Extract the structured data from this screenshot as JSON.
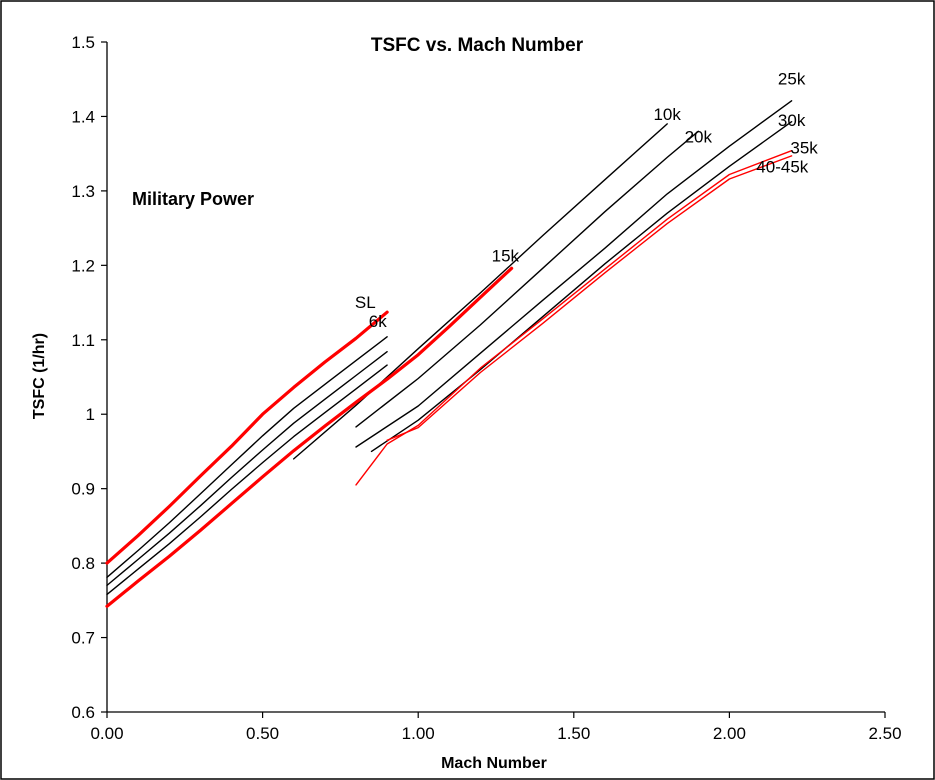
{
  "chart_data": {
    "type": "line",
    "title": "TSFC vs. Mach Number",
    "xlabel": "Mach Number",
    "ylabel": "TSFC (1/hr)",
    "annotation": "Military Power",
    "xlim": [
      0,
      2.5
    ],
    "ylim": [
      0.6,
      1.5
    ],
    "x_ticks": [
      "0.00",
      "0.50",
      "1.00",
      "1.50",
      "2.00",
      "2.50"
    ],
    "y_ticks": [
      "0.6",
      "0.7",
      "0.8",
      "0.9",
      "1",
      "1.1",
      "1.2",
      "1.3",
      "1.4",
      "1.5"
    ],
    "grid": false,
    "series": [
      {
        "name": "SL",
        "color": "#ff0000",
        "bold": true,
        "x": [
          0.0,
          0.1,
          0.2,
          0.3,
          0.4,
          0.5,
          0.6,
          0.7,
          0.8,
          0.9
        ],
        "y": [
          0.8,
          0.837,
          0.876,
          0.917,
          0.957,
          1.0,
          1.036,
          1.07,
          1.102,
          1.137
        ]
      },
      {
        "name": "6k",
        "color": "#000000",
        "bold": false,
        "x": [
          0.0,
          0.1,
          0.2,
          0.3,
          0.4,
          0.5,
          0.6,
          0.7,
          0.8,
          0.9
        ],
        "y": [
          0.781,
          0.817,
          0.854,
          0.893,
          0.932,
          0.971,
          1.008,
          1.04,
          1.072,
          1.104
        ]
      },
      {
        "name": "",
        "color": "#000000",
        "bold": false,
        "x": [
          0.0,
          0.1,
          0.2,
          0.3,
          0.4,
          0.5,
          0.6,
          0.7,
          0.8,
          0.9
        ],
        "y": [
          0.77,
          0.805,
          0.84,
          0.877,
          0.915,
          0.952,
          0.988,
          1.02,
          1.052,
          1.084
        ]
      },
      {
        "name": "",
        "color": "#000000",
        "bold": false,
        "x": [
          0.0,
          0.1,
          0.2,
          0.3,
          0.4,
          0.5,
          0.6,
          0.7,
          0.8,
          0.9
        ],
        "y": [
          0.758,
          0.792,
          0.826,
          0.862,
          0.899,
          0.935,
          0.97,
          1.002,
          1.034,
          1.066
        ]
      },
      {
        "name": "10k",
        "color": "#000000",
        "bold": false,
        "x": [
          0.6,
          0.8,
          1.0,
          1.2,
          1.4,
          1.6,
          1.8
        ],
        "y": [
          0.94,
          1.012,
          1.088,
          1.163,
          1.24,
          1.315,
          1.39
        ]
      },
      {
        "name": "15k",
        "color": "#ff0000",
        "bold": true,
        "x": [
          0.0,
          0.1,
          0.2,
          0.3,
          0.4,
          0.5,
          0.6,
          0.7,
          0.8,
          0.9,
          1.0,
          1.1,
          1.2,
          1.3
        ],
        "y": [
          0.742,
          0.776,
          0.809,
          0.844,
          0.88,
          0.916,
          0.951,
          0.984,
          1.016,
          1.047,
          1.08,
          1.118,
          1.157,
          1.196
        ]
      },
      {
        "name": "20k",
        "color": "#000000",
        "bold": false,
        "x": [
          0.8,
          1.0,
          1.2,
          1.4,
          1.6,
          1.8,
          1.9
        ],
        "y": [
          0.983,
          1.048,
          1.12,
          1.196,
          1.272,
          1.345,
          1.38
        ]
      },
      {
        "name": "25k",
        "color": "#000000",
        "bold": false,
        "x": [
          0.8,
          1.0,
          1.2,
          1.4,
          1.6,
          1.8,
          2.0,
          2.2
        ],
        "y": [
          0.956,
          1.011,
          1.082,
          1.153,
          1.223,
          1.296,
          1.36,
          1.421
        ]
      },
      {
        "name": "30k",
        "color": "#000000",
        "bold": false,
        "x": [
          0.85,
          1.0,
          1.2,
          1.4,
          1.6,
          1.8,
          2.0,
          2.2
        ],
        "y": [
          0.95,
          0.992,
          1.06,
          1.131,
          1.202,
          1.27,
          1.333,
          1.393
        ]
      },
      {
        "name": "35k",
        "color": "#ff0000",
        "bold": false,
        "x": [
          0.8,
          0.9,
          1.0,
          1.2,
          1.4,
          1.6,
          1.8,
          2.0,
          2.2
        ],
        "y": [
          0.905,
          0.96,
          0.985,
          1.062,
          1.128,
          1.195,
          1.262,
          1.322,
          1.354
        ]
      },
      {
        "name": "40-45k",
        "color": "#ff0000",
        "bold": false,
        "x": [
          0.9,
          1.0,
          1.2,
          1.4,
          1.6,
          1.8,
          2.0,
          2.2
        ],
        "y": [
          0.965,
          0.982,
          1.056,
          1.122,
          1.19,
          1.256,
          1.316,
          1.347
        ]
      }
    ],
    "series_labels": [
      {
        "text": "SL",
        "x": 0.83,
        "y": 1.143
      },
      {
        "text": "6k",
        "x": 0.87,
        "y": 1.117
      },
      {
        "text": "10k",
        "x": 1.8,
        "y": 1.395
      },
      {
        "text": "15k",
        "x": 1.28,
        "y": 1.205
      },
      {
        "text": "20k",
        "x": 1.9,
        "y": 1.365
      },
      {
        "text": "25k",
        "x": 2.2,
        "y": 1.443
      },
      {
        "text": "30k",
        "x": 2.2,
        "y": 1.387
      },
      {
        "text": "35k",
        "x": 2.24,
        "y": 1.35
      },
      {
        "text": "40-45k",
        "x": 2.17,
        "y": 1.325
      }
    ]
  }
}
